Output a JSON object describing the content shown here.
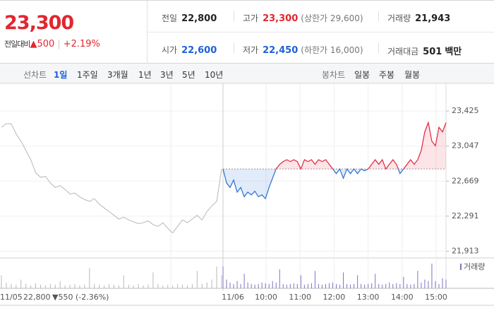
{
  "header": {
    "price": "23,300",
    "change_label": "전일대비",
    "change": "▲500",
    "change_rate": "+2.19%",
    "stats": [
      {
        "label": "전일",
        "value": "22,800",
        "color": "#222222"
      },
      {
        "label": "고가",
        "value": "23,300",
        "note": "(상한가 29,600)",
        "color": "#e2262f"
      },
      {
        "label": "거래량",
        "value": "21,943",
        "color": "#222222"
      },
      {
        "label": "시가",
        "value": "22,600",
        "color": "#1e61d6"
      },
      {
        "label": "저가",
        "value": "22,450",
        "note": "(하한가 16,000)",
        "color": "#1e61d6"
      },
      {
        "label": "거래대금",
        "value": "501",
        "note": "백만",
        "color": "#222222"
      }
    ]
  },
  "tabs": {
    "line_label": "선차트",
    "line": [
      "1일",
      "1주일",
      "3개월",
      "1년",
      "3년",
      "5년",
      "10년"
    ],
    "selected": 0,
    "candle_label": "봉차트",
    "candle": [
      "일봉",
      "주봉",
      "월봉"
    ]
  },
  "chart_data": {
    "type": "line",
    "baseline": 22800,
    "ylim": [
      21840,
      23670
    ],
    "yticks": [
      {
        "value": 23425,
        "label": "23,425"
      },
      {
        "value": 23047,
        "label": "23,047"
      },
      {
        "value": 22669,
        "label": "22,669"
      },
      {
        "value": 22291,
        "label": "22,291"
      },
      {
        "value": 21913,
        "label": "21,913"
      }
    ],
    "grid": true,
    "prev_day": {
      "date": "11/05",
      "close": "22,800",
      "change": "▼550 (-2.36%)",
      "color": "#b8b8b8",
      "label_color": "#1e61d6",
      "values": [
        23250,
        23288,
        23288,
        23180,
        23100,
        23000,
        22900,
        22760,
        22710,
        22720,
        22650,
        22600,
        22620,
        22580,
        22530,
        22540,
        22500,
        22470,
        22450,
        22480,
        22420,
        22380,
        22340,
        22300,
        22260,
        22280,
        22250,
        22230,
        22210,
        22220,
        22240,
        22200,
        22180,
        22220,
        22160,
        22110,
        22180,
        22250,
        22220,
        22260,
        22300,
        22250,
        22340,
        22400,
        22450,
        22800
      ],
      "volume": [
        900,
        400,
        300,
        250,
        600,
        300,
        200,
        350,
        250,
        200,
        300,
        250,
        500,
        200,
        250,
        300,
        200,
        250,
        1400,
        300,
        250,
        200,
        300,
        250,
        200,
        900,
        250,
        200,
        300,
        200,
        250,
        1100,
        300,
        200,
        250,
        200,
        300,
        250,
        200,
        300,
        1200,
        300,
        400,
        600,
        1500,
        900
      ]
    },
    "date": "11/06",
    "x_labels": [
      "10:00",
      "11:00",
      "12:00",
      "13:00",
      "14:00",
      "15:00"
    ],
    "up_color": "#e4233b",
    "down_color": "#2a6fd4",
    "values": [
      22800,
      22650,
      22600,
      22680,
      22550,
      22600,
      22500,
      22550,
      22520,
      22560,
      22500,
      22520,
      22480,
      22600,
      22700,
      22800,
      22850,
      22880,
      22900,
      22880,
      22900,
      22880,
      22800,
      22900,
      22880,
      22900,
      22850,
      22900,
      22880,
      22900,
      22850,
      22800,
      22750,
      22800,
      22700,
      22800,
      22750,
      22800,
      22750,
      22800,
      22780,
      22800,
      22850,
      22900,
      22850,
      22900,
      22800,
      22850,
      22900,
      22850,
      22750,
      22800,
      22850,
      22900,
      22850,
      22900,
      23000,
      23200,
      23300,
      23100,
      23050,
      23250,
      23200,
      23300
    ],
    "volume": {
      "name": "거래량",
      "color": "#7d74c4",
      "ylim": [
        0,
        1800
      ],
      "values": [
        1500,
        600,
        400,
        300,
        500,
        300,
        1000,
        400,
        300,
        250,
        300,
        400,
        350,
        300,
        500,
        400,
        1300,
        300,
        250,
        300,
        350,
        300,
        900,
        250,
        300,
        350,
        1200,
        300,
        250,
        300,
        350,
        400,
        300,
        250,
        1100,
        300,
        250,
        300,
        900,
        300,
        250,
        300,
        350,
        1000,
        300,
        250,
        300,
        400,
        300,
        350,
        300,
        800,
        300,
        250,
        300,
        1200,
        400,
        600,
        500,
        1700,
        500,
        300,
        700,
        600
      ]
    }
  }
}
